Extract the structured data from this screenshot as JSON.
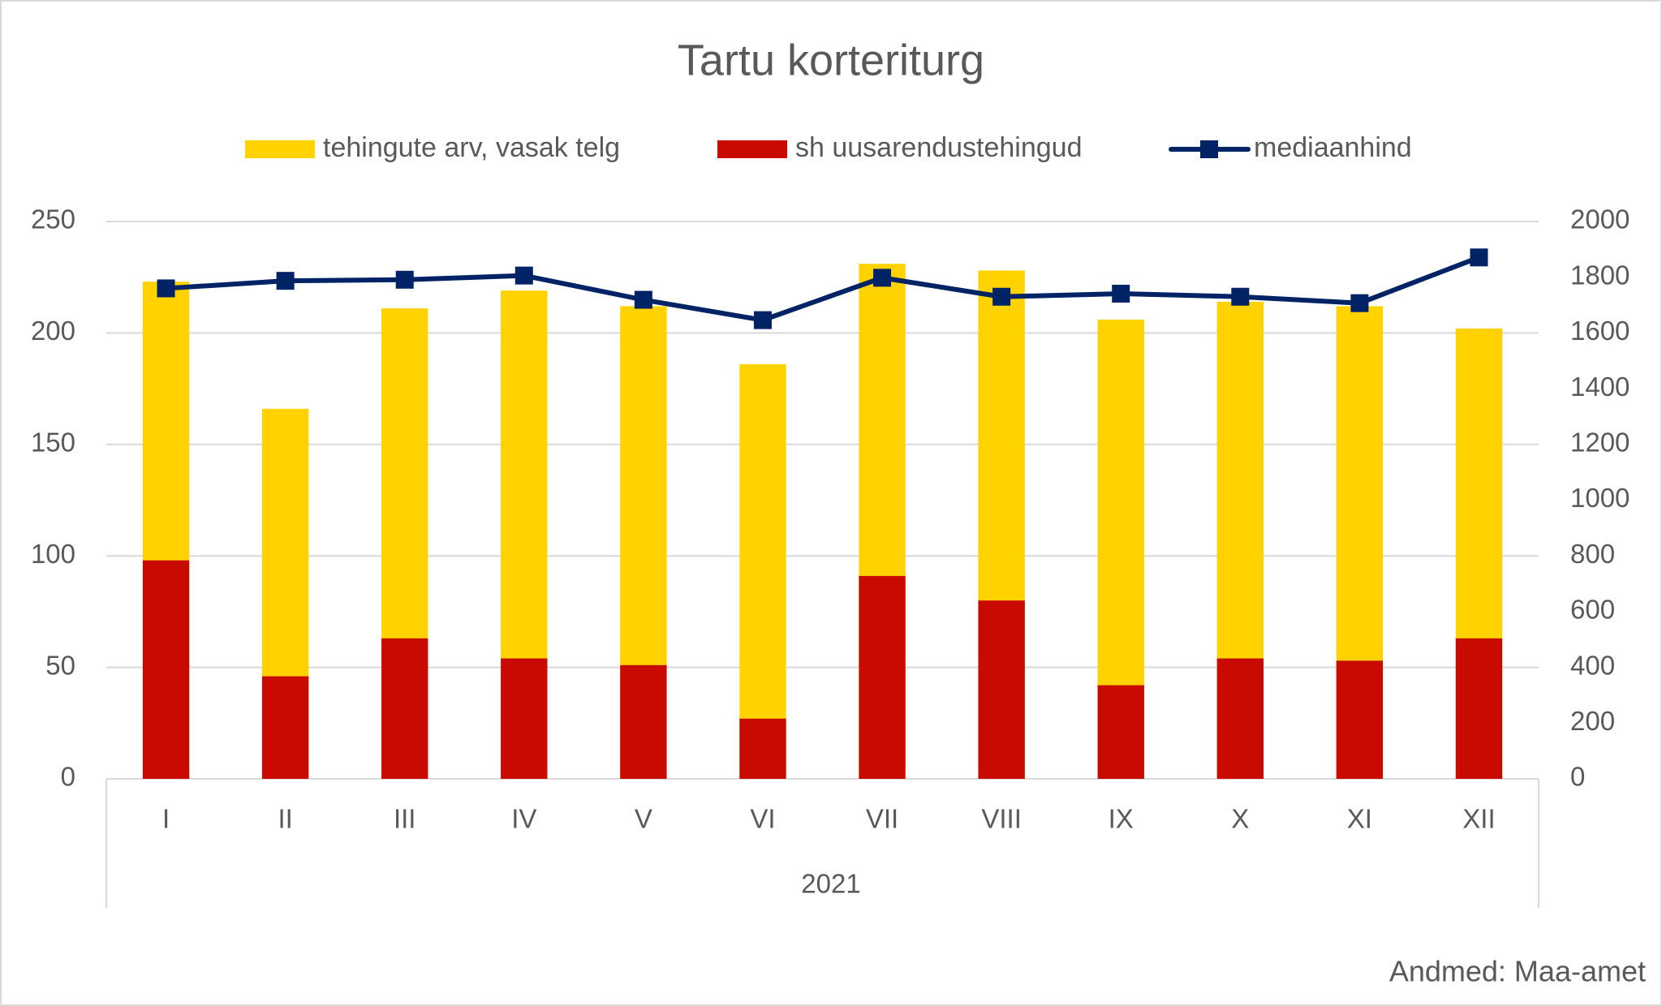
{
  "chart_data": {
    "type": "bar",
    "title": "Tartu korteriturg",
    "categories": [
      "I",
      "II",
      "III",
      "IV",
      "V",
      "VI",
      "VII",
      "VIII",
      "IX",
      "X",
      "XI",
      "XII"
    ],
    "group_label": "2021",
    "series": [
      {
        "name": "tehingute arv, vasak telg",
        "type": "bar",
        "color": "#ffd200",
        "values": [
          223,
          166,
          211,
          219,
          212,
          186,
          231,
          228,
          206,
          214,
          212,
          202
        ]
      },
      {
        "name": "sh uusarendustehingud",
        "type": "bar",
        "color": "#c80a00",
        "values": [
          98,
          46,
          63,
          54,
          51,
          27,
          91,
          80,
          42,
          54,
          53,
          63
        ]
      },
      {
        "name": "mediaanhind",
        "type": "line",
        "axis": "y2",
        "color": "#002366",
        "values": [
          1760,
          1787,
          1791,
          1806,
          1719,
          1646,
          1798,
          1730,
          1741,
          1730,
          1707,
          1871
        ]
      }
    ],
    "ylim": [
      0,
      250
    ],
    "yticks": [
      0,
      50,
      100,
      150,
      200,
      250
    ],
    "y2lim": [
      0,
      2000
    ],
    "y2ticks": [
      0,
      200,
      400,
      600,
      800,
      1000,
      1200,
      1400,
      1600,
      1800,
      2000
    ],
    "grid": true,
    "legend": "top",
    "source": "Andmed: Maa-amet"
  }
}
